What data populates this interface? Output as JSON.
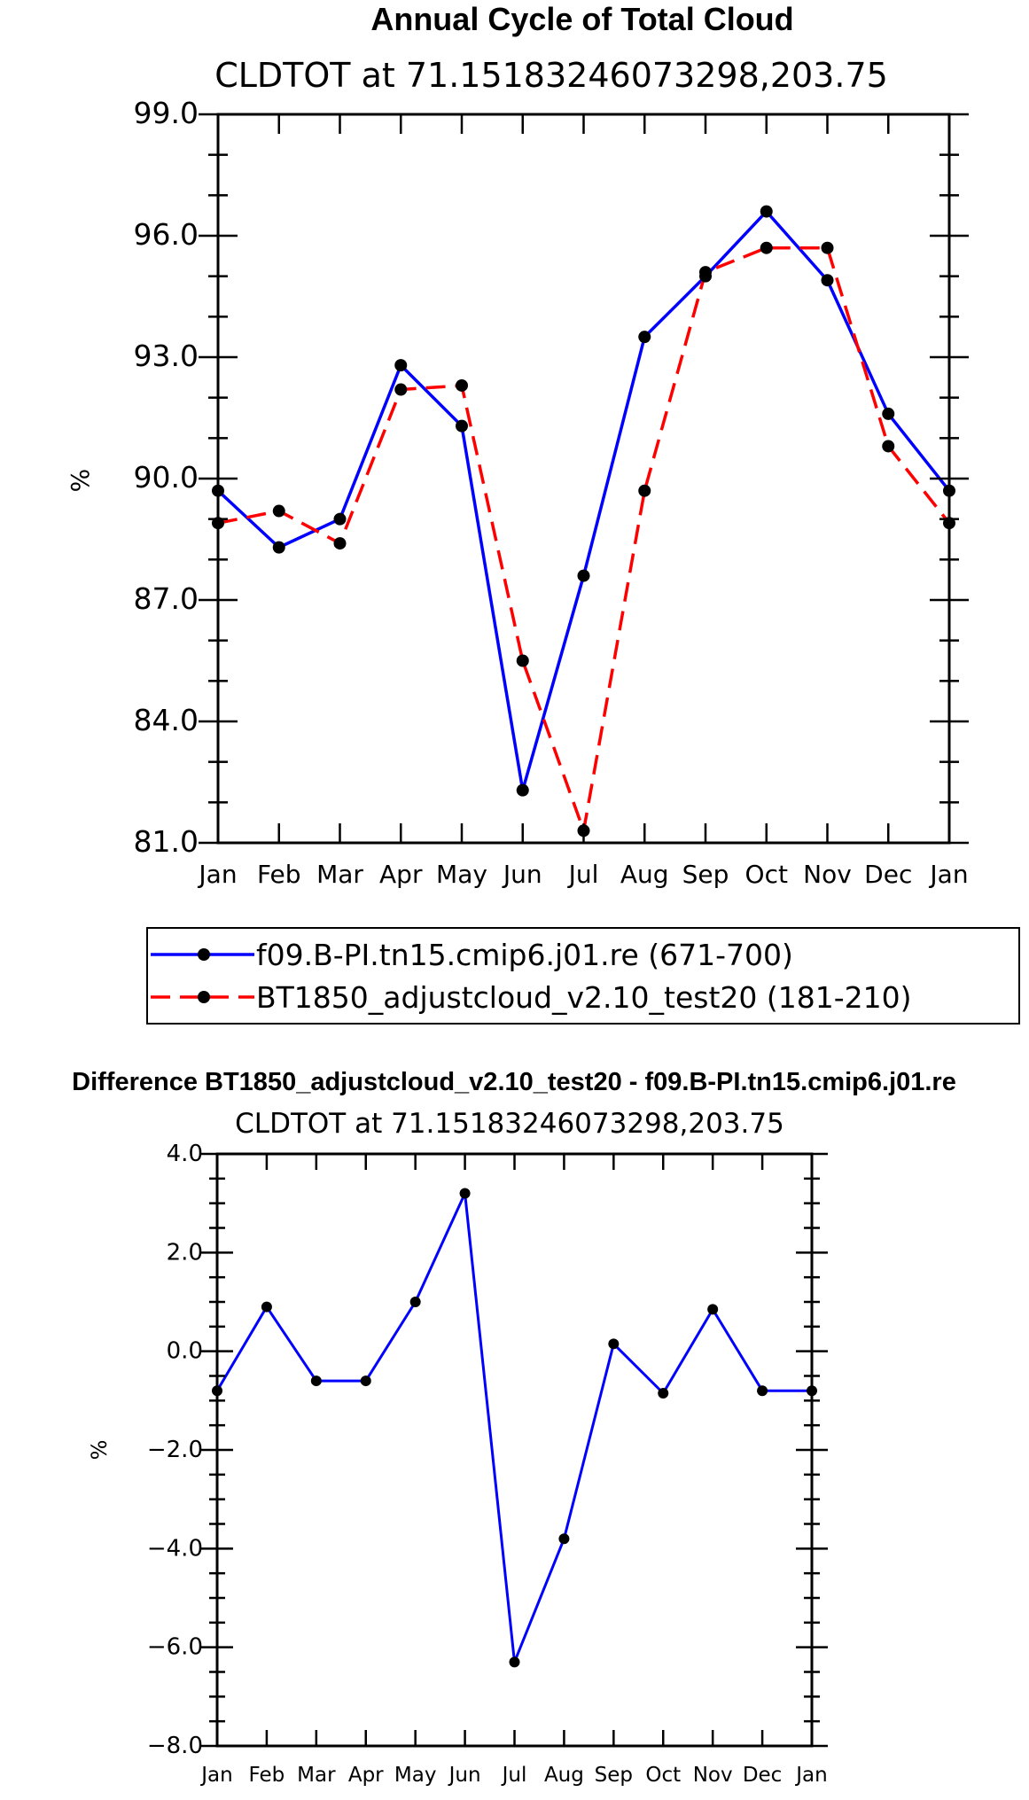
{
  "colors": {
    "series1": "#0000ff",
    "series2": "#ff0000",
    "marker": "#000000",
    "axis": "#000000"
  },
  "chart_data": [
    {
      "type": "line",
      "title": "Annual Cycle of Total Cloud",
      "subtitle": "CLDTOT at 71.15183246073298,203.75",
      "xlabel": "",
      "ylabel": "%",
      "categories": [
        "Jan",
        "Feb",
        "Mar",
        "Apr",
        "May",
        "Jun",
        "Jul",
        "Aug",
        "Sep",
        "Oct",
        "Nov",
        "Dec",
        "Jan"
      ],
      "ylim": [
        81.0,
        99.0
      ],
      "yticks": [
        "81.0",
        "84.0",
        "87.0",
        "90.0",
        "93.0",
        "96.0",
        "99.0"
      ],
      "ytick_values": [
        81,
        84,
        87,
        90,
        93,
        96,
        99
      ],
      "legend_position": "bottom",
      "series": [
        {
          "name": "f09.B-PI.tn15.cmip6.j01.re (671-700)",
          "style": "solid",
          "values": [
            89.7,
            88.3,
            89.0,
            92.8,
            91.3,
            82.3,
            87.6,
            93.5,
            95.0,
            96.6,
            94.9,
            91.6,
            89.7
          ]
        },
        {
          "name": "BT1850_adjustcloud_v2.10_test20 (181-210)",
          "style": "dashed",
          "values": [
            88.9,
            89.2,
            88.4,
            92.2,
            92.3,
            85.5,
            81.3,
            89.7,
            95.1,
            95.7,
            95.7,
            90.8,
            88.9
          ]
        }
      ]
    },
    {
      "type": "line",
      "title": "Difference BT1850_adjustcloud_v2.10_test20 - f09.B-PI.tn15.cmip6.j01.re",
      "subtitle": "CLDTOT at 71.15183246073298,203.75",
      "xlabel": "",
      "ylabel": "%",
      "categories": [
        "Jan",
        "Feb",
        "Mar",
        "Apr",
        "May",
        "Jun",
        "Jul",
        "Aug",
        "Sep",
        "Oct",
        "Nov",
        "Dec",
        "Jan"
      ],
      "ylim": [
        -8.0,
        4.0
      ],
      "yticks": [
        "−8.0",
        "−6.0",
        "−4.0",
        "−2.0",
        "0.0",
        "2.0",
        "4.0"
      ],
      "ytick_values": [
        -8,
        -6,
        -4,
        -2,
        0,
        2,
        4
      ],
      "series": [
        {
          "name": "Difference",
          "style": "solid",
          "values": [
            -0.8,
            0.9,
            -0.6,
            -0.6,
            1.0,
            3.2,
            -6.3,
            -3.8,
            0.15,
            -0.85,
            0.85,
            -0.8,
            -0.8
          ]
        }
      ]
    }
  ]
}
